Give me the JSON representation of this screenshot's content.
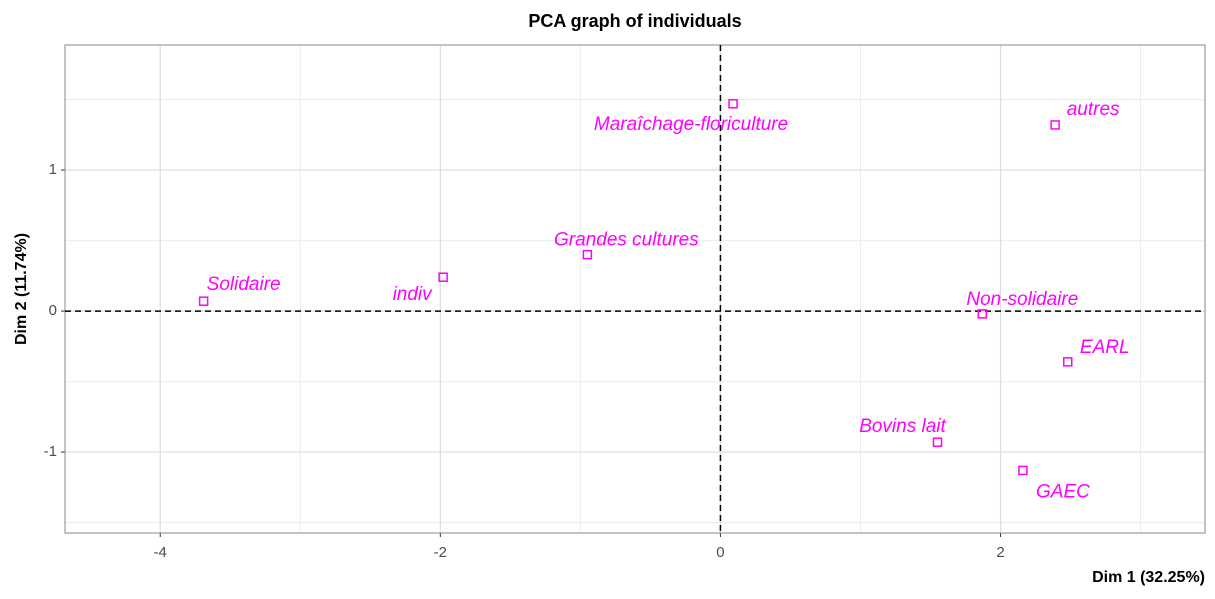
{
  "chart_data": {
    "type": "scatter",
    "title": "PCA graph of individuals",
    "x_label": "Dim 1 (32.25%)",
    "y_label": "Dim 2 (11.74%)",
    "series": [
      {
        "name": "individuals",
        "color": "#ff00ff",
        "labels": [
          "Solidaire",
          "indiv",
          "Grandes cultures",
          "Maraîchage-floriculture",
          "autres",
          "Non-solidaire",
          "EARL",
          "Bovins lait",
          "GAEC"
        ],
        "x": [
          -3.69,
          -1.98,
          -0.95,
          0.09,
          2.39,
          1.87,
          2.48,
          1.55,
          2.16
        ],
        "values": [
          0.07,
          0.24,
          0.4,
          1.47,
          1.32,
          -0.02,
          -0.36,
          -0.93,
          -1.13
        ]
      }
    ],
    "xlim": [
      -4.68,
      3.46
    ],
    "ylim": [
      -1.574,
      1.887
    ],
    "xticks": [
      -4,
      -2,
      0,
      2
    ],
    "yticks": [
      -1,
      0,
      1
    ],
    "xminor": [
      -3,
      -1,
      1,
      3
    ],
    "yminor": [
      -1.5,
      -0.5,
      0.5,
      1.5
    ],
    "reference_lines": {
      "x": 0,
      "y": 0
    },
    "grid": true
  }
}
